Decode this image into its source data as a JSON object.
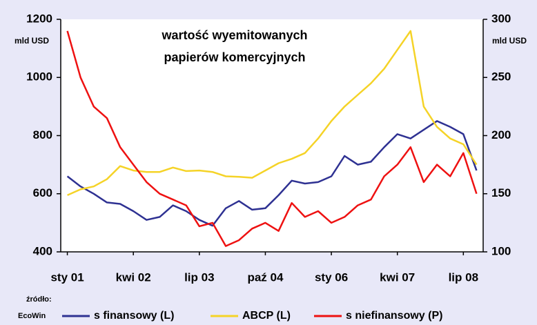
{
  "chart_data": {
    "type": "line",
    "title": [
      "wartość wyemitowanych",
      "papierów komercyjnych"
    ],
    "y_label": "mld USD",
    "y2_label": "mld USD",
    "source_label": "źródło:",
    "source": "EcoWin",
    "categories": [
      "sty 01",
      null,
      null,
      null,
      null,
      "kwi 02",
      null,
      null,
      null,
      null,
      "lip 03",
      null,
      null,
      null,
      null,
      "paź 04",
      null,
      null,
      null,
      null,
      "sty 06",
      null,
      null,
      null,
      null,
      "kwi 07",
      null,
      null,
      null,
      null,
      "lip 08",
      null
    ],
    "ylim": [
      400,
      1200
    ],
    "yticks": [
      400,
      600,
      800,
      1000,
      1200
    ],
    "y2lim": [
      100,
      300
    ],
    "y2ticks": [
      100,
      150,
      200,
      250,
      300
    ],
    "legend": "bottom",
    "series": [
      {
        "name": "s finansowy (L)",
        "color": "#2e3192",
        "axis": "y",
        "values": [
          660,
          625,
          600,
          570,
          565,
          540,
          510,
          520,
          560,
          540,
          510,
          490,
          550,
          575,
          545,
          550,
          595,
          645,
          635,
          640,
          660,
          730,
          700,
          710,
          760,
          805,
          790,
          820,
          850,
          830,
          805,
          680
        ]
      },
      {
        "name": "ABCP (L)",
        "color": "#f5d327",
        "axis": "y",
        "values": [
          595,
          615,
          625,
          650,
          695,
          680,
          675,
          675,
          690,
          678,
          680,
          675,
          660,
          658,
          655,
          680,
          705,
          720,
          740,
          790,
          850,
          900,
          940,
          980,
          1030,
          1095,
          1160,
          900,
          830,
          790,
          770,
          700
        ]
      },
      {
        "name": "s niefinansowy (P)",
        "color": "#ee1111",
        "axis": "y2",
        "values": [
          290,
          250,
          225,
          215,
          190,
          175,
          160,
          150,
          145,
          140,
          122,
          125,
          105,
          110,
          120,
          125,
          118,
          142,
          130,
          135,
          125,
          130,
          140,
          145,
          165,
          175,
          190,
          160,
          175,
          165,
          185,
          150
        ]
      }
    ]
  }
}
